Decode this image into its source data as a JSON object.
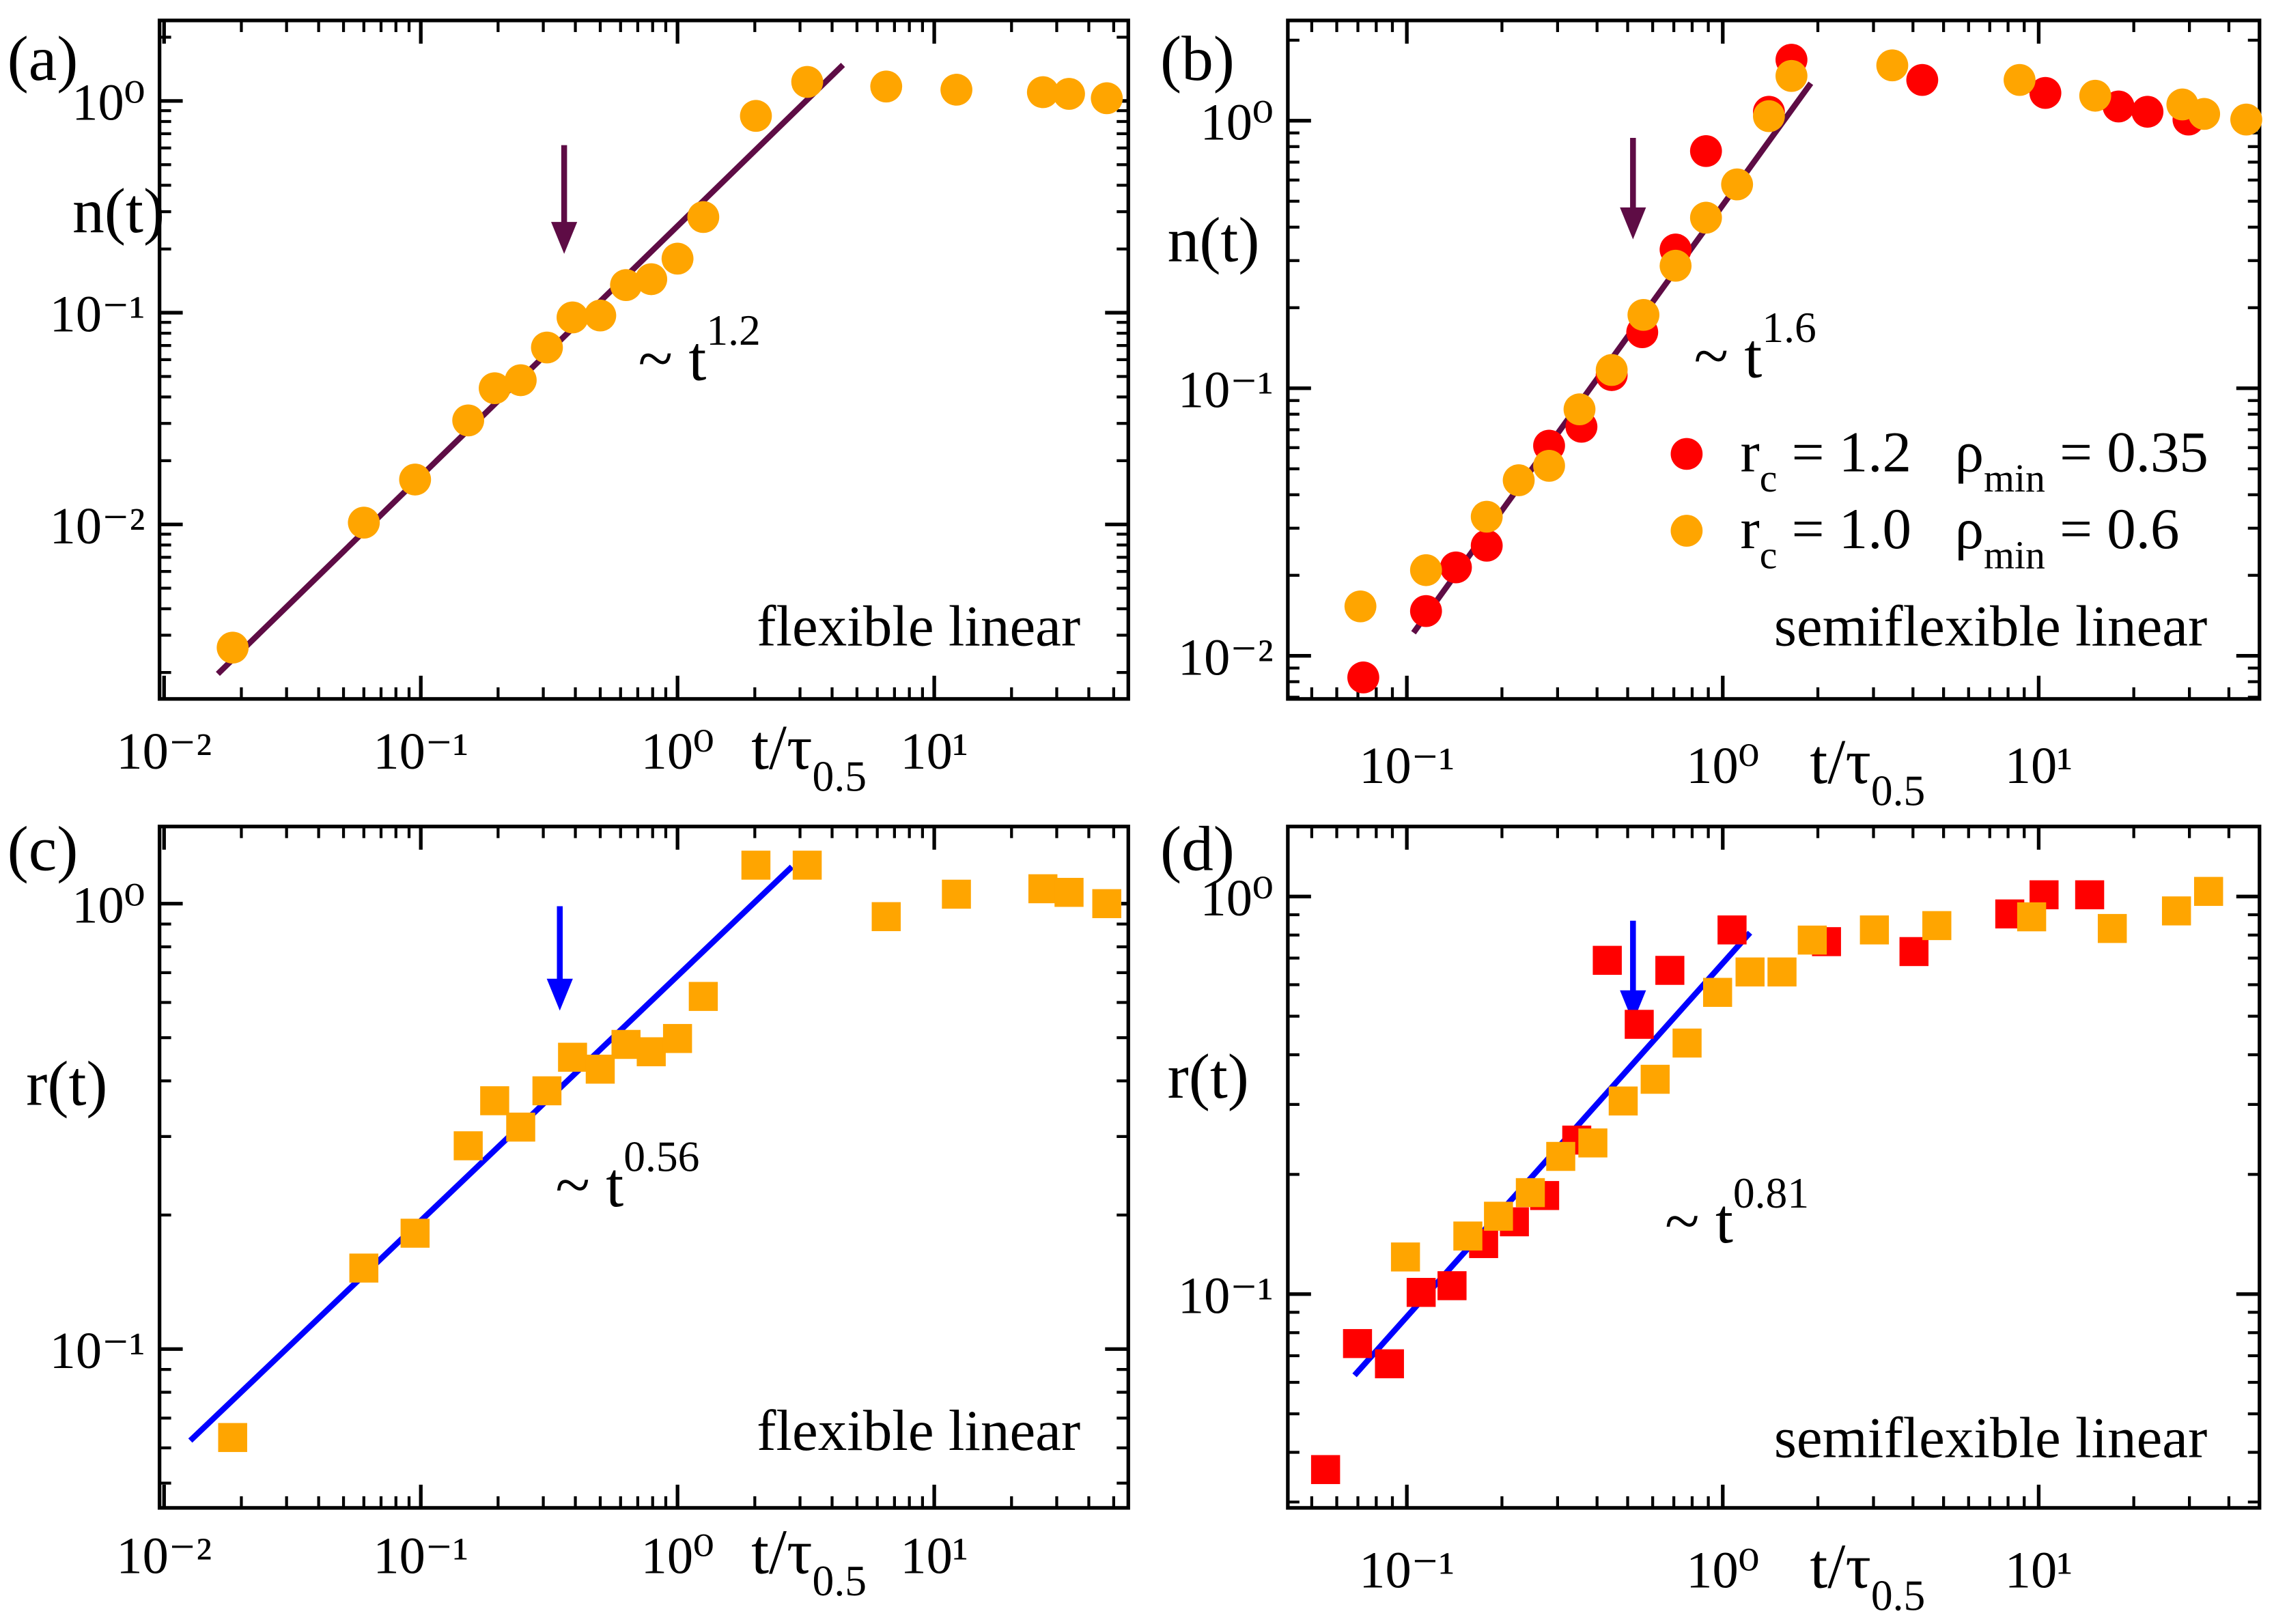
{
  "chart_data": [
    {
      "type": "scatter",
      "panel": "(a)",
      "ylabel": "n(t)",
      "xlabel": [
        "t/τ",
        "0.5"
      ],
      "xscale": "log",
      "yscale": "log",
      "minor_ticks": true,
      "xlim": [
        0.0096,
        57
      ],
      "ylim": [
        0.0015,
        2.4
      ],
      "xticks": [
        {
          "value": 0.01,
          "label": "10⁻²"
        },
        {
          "value": 0.1,
          "label": "10⁻¹"
        },
        {
          "value": 1,
          "label": "10⁰"
        },
        {
          "value": 10,
          "label": "10¹"
        }
      ],
      "yticks": [
        {
          "value": 0.01,
          "label": "10⁻²"
        },
        {
          "value": 0.1,
          "label": "10⁻¹"
        },
        {
          "value": 1,
          "label": "10⁰"
        }
      ],
      "series": [
        {
          "color": "#ffa500",
          "marker": "circle",
          "x": [
            0.0185,
            0.06,
            0.095,
            0.153,
            0.194,
            0.245,
            0.31,
            0.39,
            0.5,
            0.63,
            0.79,
            1.0,
            1.26,
            2.02,
            3.2,
            6.5,
            12.2,
            26.5,
            33.5,
            47
          ],
          "values": [
            0.00262,
            0.0102,
            0.0163,
            0.031,
            0.044,
            0.048,
            0.0685,
            0.095,
            0.097,
            0.135,
            0.144,
            0.18,
            0.283,
            0.85,
            1.23,
            1.17,
            1.13,
            1.1,
            1.08,
            1.03
          ]
        }
      ],
      "fit": {
        "color": "#5e0c45",
        "x": [
          0.0162,
          4.41
        ],
        "values": [
          0.00197,
          1.48
        ],
        "label": [
          "~ t",
          "1.2"
        ]
      },
      "text": "flexible linear"
    },
    {
      "type": "scatter",
      "panel": "(b)",
      "ylabel": "n(t)",
      "xlabel": [
        "t/τ",
        "0.5"
      ],
      "xscale": "log",
      "yscale": "log",
      "minor_ticks": true,
      "xlim": [
        0.042,
        50
      ],
      "ylim": [
        0.0069,
        2.37
      ],
      "xticks": [
        {
          "value": 0.1,
          "label": "10⁻¹"
        },
        {
          "value": 1,
          "label": "10⁰"
        },
        {
          "value": 10,
          "label": "10¹"
        }
      ],
      "yticks": [
        {
          "value": 0.01,
          "label": "10⁻²"
        },
        {
          "value": 0.1,
          "label": "10⁻¹"
        },
        {
          "value": 1,
          "label": "10⁰"
        }
      ],
      "series": [
        {
          "name": [
            "r",
            "c",
            " = 1.2   ρ",
            "min",
            " = 0.35"
          ],
          "color": "#ff0000",
          "marker": "circle",
          "x": [
            0.0728,
            0.115,
            0.143,
            0.179,
            0.282,
            0.357,
            0.445,
            0.556,
            0.709,
            0.885,
            1.4,
            1.65,
            4.28,
            10.5,
            17.9,
            22.1,
            29.8
          ],
          "values": [
            0.0083,
            0.0147,
            0.0214,
            0.0258,
            0.061,
            0.0718,
            0.112,
            0.162,
            0.33,
            0.77,
            1.08,
            1.69,
            1.42,
            1.27,
            1.13,
            1.08,
            1.01
          ]
        },
        {
          "name": [
            "r",
            "c",
            " = 1.0   ρ",
            "min",
            " = 0.6"
          ],
          "color": "#ffa500",
          "marker": "circle",
          "x": [
            0.0713,
            0.115,
            0.179,
            0.226,
            0.282,
            0.352,
            0.445,
            0.561,
            0.709,
            0.885,
            1.11,
            1.4,
            1.65,
            3.44,
            8.7,
            15.1,
            28.5,
            33.4,
            45.4
          ],
          "values": [
            0.0153,
            0.0209,
            0.0331,
            0.0453,
            0.0513,
            0.0834,
            0.117,
            0.188,
            0.287,
            0.434,
            0.578,
            1.04,
            1.47,
            1.61,
            1.42,
            1.24,
            1.15,
            1.06,
            1.01
          ]
        }
      ],
      "fit": {
        "color": "#5e0c45",
        "x": [
          0.105,
          1.9
        ],
        "values": [
          0.0122,
          1.38
        ],
        "label": [
          "~ t",
          "1.6"
        ]
      },
      "text": "semiflexible linear"
    },
    {
      "type": "scatter",
      "panel": "(c)",
      "ylabel": "r(t)",
      "xlabel": [
        "t/τ",
        "0.5"
      ],
      "xscale": "log",
      "yscale": "log",
      "minor_ticks": true,
      "xlim": [
        0.0096,
        57
      ],
      "ylim": [
        0.044,
        1.49
      ],
      "xticks": [
        {
          "value": 0.01,
          "label": "10⁻²"
        },
        {
          "value": 0.1,
          "label": "10⁻¹"
        },
        {
          "value": 1,
          "label": "10⁰"
        },
        {
          "value": 10,
          "label": "10¹"
        }
      ],
      "yticks": [
        {
          "value": 0.1,
          "label": "10⁻¹"
        },
        {
          "value": 1,
          "label": "10⁰"
        }
      ],
      "series": [
        {
          "color": "#ffa500",
          "marker": "square",
          "x": [
            0.0185,
            0.06,
            0.095,
            0.153,
            0.194,
            0.245,
            0.31,
            0.39,
            0.5,
            0.63,
            0.79,
            1.0,
            1.26,
            2.02,
            3.2,
            6.5,
            12.2,
            26.5,
            33.5,
            47
          ],
          "values": [
            0.0633,
            0.152,
            0.182,
            0.286,
            0.361,
            0.315,
            0.38,
            0.452,
            0.425,
            0.483,
            0.465,
            0.498,
            0.619,
            1.22,
            1.22,
            0.935,
            1.05,
            1.08,
            1.06,
            1.0
          ]
        }
      ],
      "fit": {
        "color": "#0000ff",
        "x": [
          0.01265,
          2.79
        ],
        "values": [
          0.0623,
          1.21
        ],
        "label": [
          "~ t",
          "0.56"
        ]
      },
      "text": "flexible linear"
    },
    {
      "type": "scatter",
      "panel": "(d)",
      "ylabel": "r(t)",
      "xlabel": [
        "t/τ",
        "0.5"
      ],
      "xscale": "log",
      "yscale": "log",
      "minor_ticks": true,
      "xlim": [
        0.042,
        50
      ],
      "ylim": [
        0.029,
        1.5
      ],
      "xticks": [
        {
          "value": 0.1,
          "label": "10⁻¹"
        },
        {
          "value": 1,
          "label": "10⁰"
        },
        {
          "value": 10,
          "label": "10¹"
        }
      ],
      "yticks": [
        {
          "value": 0.1,
          "label": "10⁻¹"
        },
        {
          "value": 1,
          "label": "10⁰"
        }
      ],
      "series": [
        {
          "color": "#ff0000",
          "marker": "square",
          "x": [
            0.0553,
            0.0698,
            0.0881,
            0.111,
            0.139,
            0.175,
            0.219,
            0.273,
            0.345,
            0.431,
            0.544,
            0.68,
            1.07,
            2.13,
            4.03,
            8.1,
            10.4,
            14.5
          ],
          "values": [
            0.0362,
            0.0751,
            0.0668,
            0.101,
            0.105,
            0.134,
            0.152,
            0.177,
            0.244,
            0.691,
            0.477,
            0.652,
            0.824,
            0.77,
            0.727,
            0.904,
            1.01,
            1.01
          ]
        },
        {
          "color": "#ffa500",
          "marker": "square",
          "x": [
            0.099,
            0.156,
            0.195,
            0.246,
            0.307,
            0.388,
            0.484,
            0.611,
            0.771,
            0.963,
            1.22,
            1.54,
            1.92,
            3.02,
            4.76,
            9.5,
            17.1,
            27.3,
            34.5
          ],
          "values": [
            0.124,
            0.14,
            0.157,
            0.18,
            0.222,
            0.24,
            0.306,
            0.347,
            0.428,
            0.574,
            0.646,
            0.646,
            0.777,
            0.824,
            0.845,
            0.889,
            0.831,
            0.92,
            1.03
          ]
        }
      ],
      "fit": {
        "color": "#0000ff",
        "x": [
          0.0683,
          1.22
        ],
        "values": [
          0.0625,
          0.811
        ],
        "label": [
          "~ t",
          "0.81"
        ]
      },
      "text": "semiflexible linear"
    }
  ]
}
